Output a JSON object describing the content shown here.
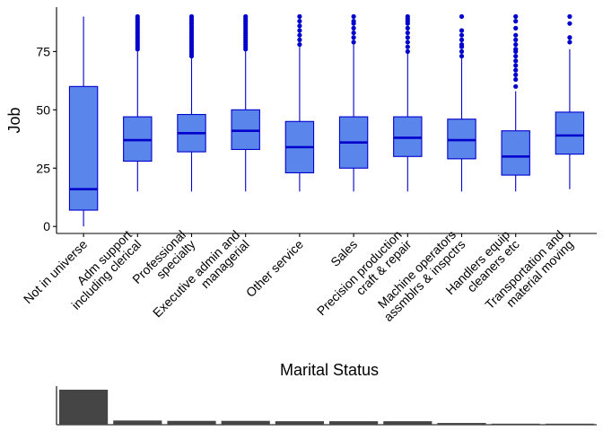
{
  "chart_data": [
    {
      "type": "box",
      "ylabel": "Job",
      "xlabel": "",
      "ylim": [
        -3,
        94
      ],
      "yticks": [
        0,
        25,
        50,
        75
      ],
      "ytick_labels": [
        "0",
        "25",
        "50",
        "75"
      ],
      "grid": false,
      "box_fill": "#5a85eb",
      "box_stroke": "#0000cd",
      "outlier_color": "#0000cd",
      "categories": [
        "Not in universe",
        "Adm support including clerical",
        "Professional specialty",
        "Executive admin and managerial",
        "Other service",
        "Sales",
        "Precision production craft & repair",
        "Machine operators assmblrs & inspctrs",
        "Handlers equip cleaners etc",
        "Transportation and material moving"
      ],
      "category_label_lines": [
        [
          "Not in universe"
        ],
        [
          "Adm support",
          "including clerical"
        ],
        [
          "Professional",
          "specialty"
        ],
        [
          "Executive admin and",
          "managerial"
        ],
        [
          "Other service"
        ],
        [
          "Sales"
        ],
        [
          "Precision production",
          "craft & repair"
        ],
        [
          "Machine operators",
          "assmblrs & inspctrs"
        ],
        [
          "Handlers equip",
          "cleaners etc"
        ],
        [
          "Transportation and",
          "material moving"
        ]
      ],
      "boxes": [
        {
          "min": 0,
          "q1": 7,
          "median": 16,
          "q3": 60,
          "max": 90,
          "outliers": []
        },
        {
          "min": 15,
          "q1": 28,
          "median": 37,
          "q3": 47,
          "max": 75,
          "outliers": [
            76,
            77,
            78,
            79,
            80,
            81,
            82,
            83,
            84,
            85,
            86,
            87,
            88,
            89,
            90
          ]
        },
        {
          "min": 15,
          "q1": 32,
          "median": 40,
          "q3": 48,
          "max": 72,
          "outliers": [
            73,
            74,
            75,
            76,
            77,
            78,
            79,
            80,
            81,
            82,
            83,
            84,
            85,
            86,
            87,
            88,
            89,
            90
          ]
        },
        {
          "min": 15,
          "q1": 33,
          "median": 41,
          "q3": 50,
          "max": 75,
          "outliers": [
            76,
            77,
            78,
            79,
            80,
            81,
            82,
            83,
            84,
            85,
            86,
            87,
            88,
            89,
            90
          ]
        },
        {
          "min": 15,
          "q1": 23,
          "median": 34,
          "q3": 45,
          "max": 77,
          "outliers": [
            78,
            80,
            82,
            84,
            86,
            88,
            90
          ]
        },
        {
          "min": 15,
          "q1": 25,
          "median": 36,
          "q3": 47,
          "max": 78,
          "outliers": [
            79,
            81,
            83,
            85,
            87,
            88,
            90
          ]
        },
        {
          "min": 15,
          "q1": 30,
          "median": 38,
          "q3": 47,
          "max": 74,
          "outliers": [
            75,
            77,
            79,
            81,
            83,
            85,
            87,
            88,
            89,
            90
          ]
        },
        {
          "min": 15,
          "q1": 29,
          "median": 37,
          "q3": 46,
          "max": 72,
          "outliers": [
            73,
            75,
            77,
            78,
            80,
            82,
            84,
            90
          ]
        },
        {
          "min": 15,
          "q1": 22,
          "median": 30,
          "q3": 41,
          "max": 58,
          "outliers": [
            60,
            63,
            65,
            67,
            69,
            71,
            73,
            75,
            76,
            78,
            80,
            82,
            85,
            88,
            90
          ]
        },
        {
          "min": 16,
          "q1": 31,
          "median": 39,
          "q3": 49,
          "max": 76,
          "outliers": [
            79,
            81,
            87,
            90
          ]
        }
      ]
    },
    {
      "type": "bar",
      "title": "Marital Status",
      "categories": [
        "Not in universe",
        "Adm support including clerical",
        "Professional specialty",
        "Executive admin and managerial",
        "Other service",
        "Sales",
        "Precision production craft & repair",
        "Machine operators assmblrs & inspctrs",
        "Handlers equip cleaners etc",
        "Transportation and material moving"
      ],
      "values": [
        1.0,
        0.12,
        0.11,
        0.11,
        0.1,
        0.1,
        0.1,
        0.05,
        0.03,
        0.03
      ],
      "bar_color": "#454545",
      "axis_ticks": false
    }
  ]
}
